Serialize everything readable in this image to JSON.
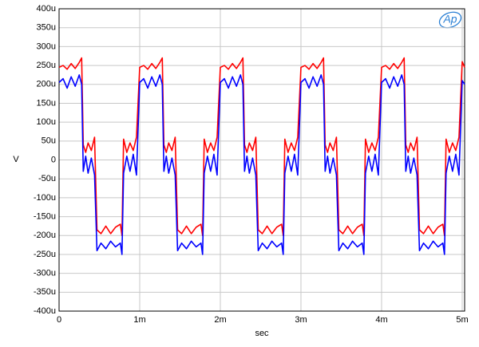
{
  "chart_data": {
    "type": "line",
    "xlabel": "sec",
    "ylabel": "V",
    "logo": "Ap",
    "grid": true,
    "x": [
      0,
      5e-05,
      0.0001,
      0.00015,
      0.0002,
      0.00025,
      0.00028,
      0.0003,
      0.00033,
      0.00036,
      0.0004,
      0.00044,
      0.00047,
      0.00052,
      0.00058,
      0.00064,
      0.0007,
      0.00076,
      0.00078,
      0.0008,
      0.00084,
      0.00088,
      0.00092,
      0.00096,
      0.001,
      0.00105,
      0.0011,
      0.00115,
      0.0012,
      0.00125,
      0.00128,
      0.0013,
      0.00133,
      0.00136,
      0.0014,
      0.00144,
      0.00147,
      0.00152,
      0.00158,
      0.00164,
      0.0017,
      0.00176,
      0.00178,
      0.0018,
      0.00184,
      0.00188,
      0.00192,
      0.00196,
      0.002,
      0.00205,
      0.0021,
      0.00215,
      0.0022,
      0.00225,
      0.00228,
      0.0023,
      0.00233,
      0.00236,
      0.0024,
      0.00244,
      0.00247,
      0.00252,
      0.00258,
      0.00264,
      0.0027,
      0.00276,
      0.00278,
      0.0028,
      0.00284,
      0.00288,
      0.00292,
      0.00296,
      0.003,
      0.00305,
      0.0031,
      0.00315,
      0.0032,
      0.00325,
      0.00328,
      0.0033,
      0.00333,
      0.00336,
      0.0034,
      0.00344,
      0.00347,
      0.00352,
      0.00358,
      0.00364,
      0.0037,
      0.00376,
      0.00378,
      0.0038,
      0.00384,
      0.00388,
      0.00392,
      0.00396,
      0.004,
      0.00405,
      0.0041,
      0.00415,
      0.0042,
      0.00425,
      0.00428,
      0.0043,
      0.00433,
      0.00436,
      0.0044,
      0.00444,
      0.00447,
      0.00452,
      0.00458,
      0.00464,
      0.0047,
      0.00476,
      0.00478,
      0.0048,
      0.00484,
      0.00488,
      0.00492,
      0.00496,
      0.005,
      0.00503
    ],
    "series": [
      {
        "color": "#ff0000",
        "values": [
          0.000245,
          0.00025,
          0.00024,
          0.000255,
          0.000242,
          0.000258,
          0.00027,
          4e-05,
          2e-05,
          4.5e-05,
          2.5e-05,
          6e-05,
          -0.000185,
          -0.000195,
          -0.000175,
          -0.000195,
          -0.000178,
          -0.00017,
          -0.0002,
          5.5e-05,
          2e-05,
          4.5e-05,
          2.5e-05,
          6e-05,
          0.000245,
          0.00025,
          0.00024,
          0.000255,
          0.000242,
          0.000258,
          0.00027,
          4e-05,
          2e-05,
          4.5e-05,
          2.5e-05,
          6e-05,
          -0.000185,
          -0.000195,
          -0.000175,
          -0.000195,
          -0.000178,
          -0.00017,
          -0.0002,
          5.5e-05,
          2e-05,
          4.5e-05,
          2.5e-05,
          6e-05,
          0.000245,
          0.00025,
          0.00024,
          0.000255,
          0.000242,
          0.000258,
          0.00027,
          4e-05,
          2e-05,
          4.5e-05,
          2.5e-05,
          6e-05,
          -0.000185,
          -0.000195,
          -0.000175,
          -0.000195,
          -0.000178,
          -0.00017,
          -0.0002,
          5.5e-05,
          2e-05,
          4.5e-05,
          2.5e-05,
          6e-05,
          0.000245,
          0.00025,
          0.00024,
          0.000255,
          0.000242,
          0.000258,
          0.00027,
          4e-05,
          2e-05,
          4.5e-05,
          2.5e-05,
          6e-05,
          -0.000185,
          -0.000195,
          -0.000175,
          -0.000195,
          -0.000178,
          -0.00017,
          -0.0002,
          5.5e-05,
          2e-05,
          4.5e-05,
          2.5e-05,
          6e-05,
          0.000245,
          0.00025,
          0.00024,
          0.000255,
          0.000242,
          0.000258,
          0.00027,
          4e-05,
          2e-05,
          4.5e-05,
          2.5e-05,
          6e-05,
          -0.000185,
          -0.000195,
          -0.000175,
          -0.000195,
          -0.000178,
          -0.00017,
          -0.0002,
          5.5e-05,
          2e-05,
          4.5e-05,
          2.5e-05,
          6e-05,
          0.00026,
          0.000245
        ]
      },
      {
        "color": "#0000ff",
        "values": [
          0.000205,
          0.000215,
          0.00019,
          0.00022,
          0.000195,
          0.000225,
          0.0002,
          -3e-05,
          1e-05,
          -3.5e-05,
          5e-06,
          -4e-05,
          -0.00024,
          -0.00022,
          -0.000235,
          -0.000215,
          -0.00023,
          -0.00022,
          -0.00025,
          -3.5e-05,
          1e-05,
          -3e-05,
          1.5e-05,
          -4e-05,
          0.000205,
          0.000215,
          0.00019,
          0.00022,
          0.000195,
          0.000225,
          0.0002,
          -3e-05,
          1e-05,
          -3.5e-05,
          5e-06,
          -4e-05,
          -0.00024,
          -0.00022,
          -0.000235,
          -0.000215,
          -0.00023,
          -0.00022,
          -0.00025,
          -3.5e-05,
          1e-05,
          -3e-05,
          1.5e-05,
          -4e-05,
          0.000205,
          0.000215,
          0.00019,
          0.00022,
          0.000195,
          0.000225,
          0.0002,
          -3e-05,
          1e-05,
          -3.5e-05,
          5e-06,
          -4e-05,
          -0.00024,
          -0.00022,
          -0.000235,
          -0.000215,
          -0.00023,
          -0.00022,
          -0.00025,
          -3.5e-05,
          1e-05,
          -3e-05,
          1.5e-05,
          -4e-05,
          0.000205,
          0.000215,
          0.00019,
          0.00022,
          0.000195,
          0.000225,
          0.0002,
          -3e-05,
          1e-05,
          -3.5e-05,
          5e-06,
          -4e-05,
          -0.00024,
          -0.00022,
          -0.000235,
          -0.000215,
          -0.00023,
          -0.00022,
          -0.00025,
          -3.5e-05,
          1e-05,
          -3e-05,
          1.5e-05,
          -4e-05,
          0.000205,
          0.000215,
          0.00019,
          0.00022,
          0.000195,
          0.000225,
          0.0002,
          -3e-05,
          1e-05,
          -3.5e-05,
          5e-06,
          -4e-05,
          -0.00024,
          -0.00022,
          -0.000235,
          -0.000215,
          -0.00023,
          -0.00022,
          -0.00025,
          -3.5e-05,
          1e-05,
          -3e-05,
          1.5e-05,
          -4e-05,
          0.00021,
          0.0002
        ]
      }
    ],
    "xlim": [
      0,
      0.00503
    ],
    "xticks": [
      0,
      {
        "value": 0.001,
        "label": "1m"
      },
      {
        "value": 0.002,
        "label": "2m"
      },
      {
        "value": 0.003,
        "label": "3m"
      },
      {
        "value": 0.004,
        "label": "4m"
      },
      {
        "value": 0.005,
        "label": "5m"
      }
    ],
    "ylim": [
      -0.0004,
      0.0004
    ],
    "yticks": [
      {
        "value": -0.0004,
        "label": "-400u"
      },
      {
        "value": -0.00035,
        "label": "-350u"
      },
      {
        "value": -0.0003,
        "label": "-300u"
      },
      {
        "value": -0.00025,
        "label": "-250u"
      },
      {
        "value": -0.0002,
        "label": "-200u"
      },
      {
        "value": -0.00015,
        "label": "-150u"
      },
      {
        "value": -0.0001,
        "label": "-100u"
      },
      {
        "value": -5e-05,
        "label": "-50u"
      },
      0,
      {
        "value": 5e-05,
        "label": "50u"
      },
      {
        "value": 0.0001,
        "label": "100u"
      },
      {
        "value": 0.00015,
        "label": "150u"
      },
      {
        "value": 0.0002,
        "label": "200u"
      },
      {
        "value": 0.00025,
        "label": "250u"
      },
      {
        "value": 0.0003,
        "label": "300u"
      },
      {
        "value": 0.00035,
        "label": "350u"
      },
      {
        "value": 0.0004,
        "label": "400u"
      }
    ]
  }
}
